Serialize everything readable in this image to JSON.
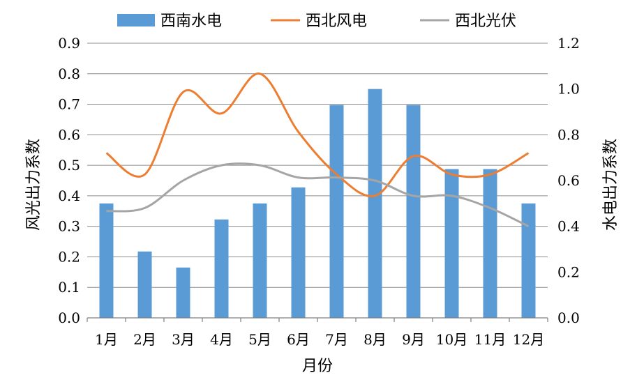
{
  "chart_data": {
    "type": "bar",
    "title": "",
    "xlabel": "月份",
    "ylabel_left": "风光出力系数",
    "ylabel_right": "水电出力系数",
    "categories": [
      "1月",
      "2月",
      "3月",
      "4月",
      "5月",
      "6月",
      "7月",
      "8月",
      "9月",
      "10月",
      "11月",
      "12月"
    ],
    "y_left": {
      "min": 0,
      "max": 0.9,
      "step": 0.1,
      "ticks": [
        "0.0",
        "0.1",
        "0.2",
        "0.3",
        "0.4",
        "0.5",
        "0.6",
        "0.7",
        "0.8",
        "0.9"
      ]
    },
    "y_right": {
      "min": 0,
      "max": 1.2,
      "step": 0.2,
      "ticks": [
        "0.0",
        "0.2",
        "0.4",
        "0.6",
        "0.8",
        "1.0",
        "1.2"
      ]
    },
    "grid": true,
    "legend_position": "top",
    "series": [
      {
        "name": "西南水电",
        "type": "bar",
        "axis": "right",
        "color": "#5b9bd5",
        "values": [
          0.5,
          0.29,
          0.22,
          0.43,
          0.5,
          0.57,
          0.93,
          1.0,
          0.93,
          0.65,
          0.65,
          0.5
        ]
      },
      {
        "name": "西北风电",
        "type": "line",
        "axis": "left",
        "color": "#ed7d31",
        "smooth": true,
        "values": [
          0.54,
          0.47,
          0.74,
          0.67,
          0.8,
          0.61,
          0.47,
          0.4,
          0.53,
          0.47,
          0.47,
          0.54
        ]
      },
      {
        "name": "西北光伏",
        "type": "line",
        "axis": "left",
        "color": "#a5a5a5",
        "smooth": true,
        "values": [
          0.35,
          0.36,
          0.45,
          0.5,
          0.5,
          0.46,
          0.46,
          0.45,
          0.4,
          0.4,
          0.36,
          0.3
        ]
      }
    ]
  }
}
